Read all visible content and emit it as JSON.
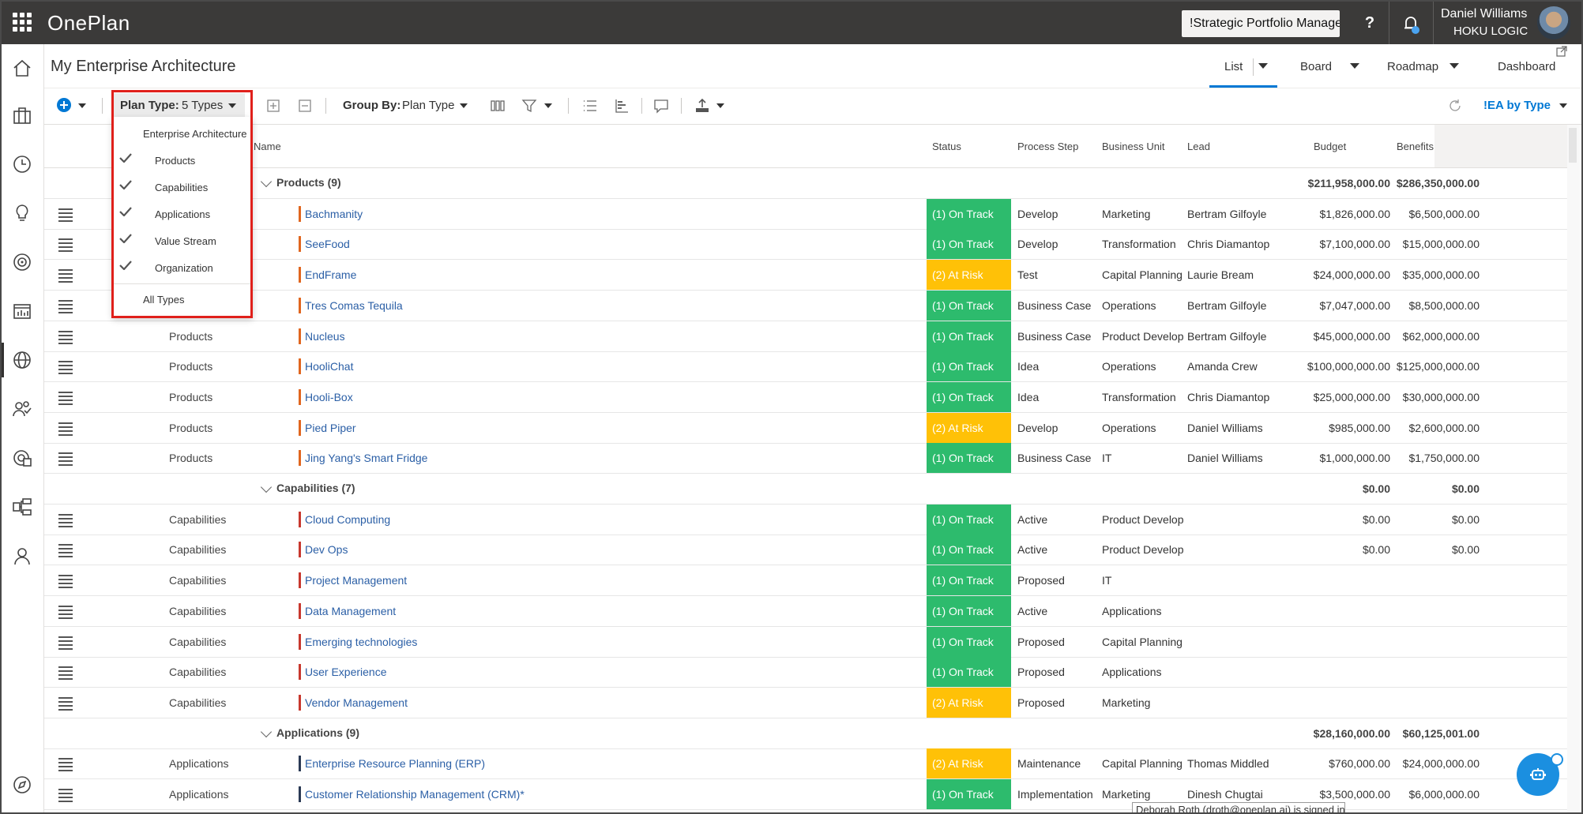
{
  "app": {
    "brand": "OnePlan",
    "environment": "!Strategic Portfolio Manager",
    "help_label": "?",
    "user_name": "Daniel Williams",
    "user_org": "HOKU LOGIC"
  },
  "page": {
    "title": "My Enterprise Architecture",
    "view_tabs": [
      {
        "label": "List",
        "active": true
      },
      {
        "label": "Board",
        "active": false
      },
      {
        "label": "Roadmap",
        "active": false
      },
      {
        "label": "Dashboard",
        "active": false
      }
    ]
  },
  "toolbar": {
    "plan_type_label": "Plan Type:",
    "plan_type_value": "5 Types",
    "group_by_label": "Group By:",
    "group_by_value": "Plan Type",
    "view_selector": "!EA by Type"
  },
  "plan_type_menu": {
    "header": "Enterprise Architecture",
    "items": [
      {
        "label": "Products",
        "checked": true
      },
      {
        "label": "Capabilities",
        "checked": true
      },
      {
        "label": "Applications",
        "checked": true
      },
      {
        "label": "Value Stream",
        "checked": true
      },
      {
        "label": "Organization",
        "checked": true
      }
    ],
    "all_types": "All Types"
  },
  "grid": {
    "columns": {
      "name": "Name",
      "status": "Status",
      "process_step": "Process Step",
      "business_unit": "Business Unit",
      "lead": "Lead",
      "budget": "Budget",
      "benefits": "Benefits"
    },
    "colors": {
      "on_track": "#2dbb6d",
      "at_risk": "#ffc107",
      "products_bar": "#e0661f",
      "capabilities_bar": "#c8382e",
      "applications_bar": "#2b3a55"
    },
    "groups": [
      {
        "title": "Products (9)",
        "budget": "$211,958,000.00",
        "benefits": "$286,350,000.00"
      },
      {
        "title": "Capabilities (7)",
        "budget": "$0.00",
        "benefits": "$0.00"
      },
      {
        "title": "Applications (9)",
        "budget": "$28,160,000.00",
        "benefits": "$60,125,001.00"
      }
    ],
    "rows": [
      {
        "type": "Products",
        "name": "Bachmanity",
        "status": "(1) On Track",
        "step": "Develop",
        "unit": "Marketing",
        "lead": "Bertram Gilfoyle",
        "budget": "$1,826,000.00",
        "benefits": "$6,500,000.00"
      },
      {
        "type": "Products",
        "name": "SeeFood",
        "status": "(1) On Track",
        "step": "Develop",
        "unit": "Transformation",
        "lead": "Chris Diamantopoulos",
        "budget": "$7,100,000.00",
        "benefits": "$15,000,000.00"
      },
      {
        "type": "Products",
        "name": "EndFrame",
        "status": "(2) At Risk",
        "step": "Test",
        "unit": "Capital Planning",
        "lead": "Laurie Bream",
        "budget": "$24,000,000.00",
        "benefits": "$35,000,000.00"
      },
      {
        "type": "Products",
        "name": "Tres Comas Tequila",
        "status": "(1) On Track",
        "step": "Business Case",
        "unit": "Operations",
        "lead": "Bertram Gilfoyle",
        "budget": "$7,047,000.00",
        "benefits": "$8,500,000.00"
      },
      {
        "type": "Products",
        "name": "Nucleus",
        "status": "(1) On Track",
        "step": "Business Case",
        "unit": "Product Development",
        "lead": "Bertram Gilfoyle",
        "budget": "$45,000,000.00",
        "benefits": "$62,000,000.00"
      },
      {
        "type": "Products",
        "name": "HooliChat",
        "status": "(1) On Track",
        "step": "Idea",
        "unit": "Operations",
        "lead": "Amanda Crew",
        "budget": "$100,000,000.00",
        "benefits": "$125,000,000.00"
      },
      {
        "type": "Products",
        "name": "Hooli-Box",
        "status": "(1) On Track",
        "step": "Idea",
        "unit": "Transformation",
        "lead": "Chris Diamantopoulos",
        "budget": "$25,000,000.00",
        "benefits": "$30,000,000.00"
      },
      {
        "type": "Products",
        "name": "Pied Piper",
        "status": "(2) At Risk",
        "step": "Develop",
        "unit": "Operations",
        "lead": "Daniel Williams",
        "budget": "$985,000.00",
        "benefits": "$2,600,000.00"
      },
      {
        "type": "Products",
        "name": "Jing Yang's Smart Fridge",
        "status": "(1) On Track",
        "step": "Business Case",
        "unit": "IT",
        "lead": "Daniel Williams",
        "budget": "$1,000,000.00",
        "benefits": "$1,750,000.00"
      },
      {
        "type": "Capabilities",
        "name": "Cloud Computing",
        "status": "(1) On Track",
        "step": "Active",
        "unit": "Product Development",
        "lead": "",
        "budget": "$0.00",
        "benefits": "$0.00"
      },
      {
        "type": "Capabilities",
        "name": "Dev Ops",
        "status": "(1) On Track",
        "step": "Active",
        "unit": "Product Development",
        "lead": "",
        "budget": "$0.00",
        "benefits": "$0.00"
      },
      {
        "type": "Capabilities",
        "name": "Project Management",
        "status": "(1) On Track",
        "step": "Proposed",
        "unit": "IT",
        "lead": "",
        "budget": "",
        "benefits": ""
      },
      {
        "type": "Capabilities",
        "name": "Data Management",
        "status": "(1) On Track",
        "step": "Active",
        "unit": "Applications",
        "lead": "",
        "budget": "",
        "benefits": ""
      },
      {
        "type": "Capabilities",
        "name": "Emerging technologies",
        "status": "(1) On Track",
        "step": "Proposed",
        "unit": "Capital Planning",
        "lead": "",
        "budget": "",
        "benefits": ""
      },
      {
        "type": "Capabilities",
        "name": "User Experience",
        "status": "(1) On Track",
        "step": "Proposed",
        "unit": "Applications",
        "lead": "",
        "budget": "",
        "benefits": ""
      },
      {
        "type": "Capabilities",
        "name": "Vendor Management",
        "status": "(2) At Risk",
        "step": "Proposed",
        "unit": "Marketing",
        "lead": "",
        "budget": "",
        "benefits": ""
      },
      {
        "type": "Applications",
        "name": "Enterprise Resource Planning (ERP)",
        "status": "(2) At Risk",
        "step": "Maintenance",
        "unit": "Capital Planning",
        "lead": "Thomas Middleditch",
        "budget": "$760,000.00",
        "benefits": "$24,000,000.00"
      },
      {
        "type": "Applications",
        "name": "Customer Relationship Management (CRM)*",
        "status": "(1) On Track",
        "step": "Implementation",
        "unit": "Marketing",
        "lead": "Dinesh Chugtai",
        "budget": "$3,500,000.00",
        "benefits": "$6,000,000.00"
      }
    ]
  },
  "signed_in_tip": "Deborah Roth (droth@oneplan.ai) is signed in"
}
